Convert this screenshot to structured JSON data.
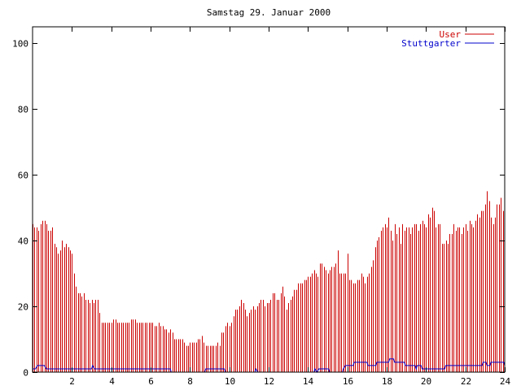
{
  "chart_data": {
    "type": "bar",
    "title": "Samstag 29. Januar 2000",
    "xlabel": "",
    "ylabel": "",
    "xlim": [
      0,
      24
    ],
    "ylim": [
      0,
      105
    ],
    "x_ticks": [
      2,
      4,
      6,
      8,
      10,
      12,
      14,
      16,
      18,
      20,
      22,
      24
    ],
    "y_ticks": [
      0,
      20,
      40,
      60,
      80,
      100
    ],
    "grid": false,
    "legend_position": "top-right",
    "colors": {
      "User": "#cc0000",
      "Stuttgarter": "#0000cc"
    },
    "user_per_hour": [
      [
        45,
        44,
        44,
        43,
        45,
        46,
        46,
        45,
        43,
        43,
        44,
        39
      ],
      [
        38,
        36,
        37,
        40,
        38,
        39,
        38,
        37,
        36,
        30,
        26,
        24
      ],
      [
        24,
        23,
        24,
        22,
        22,
        21,
        22,
        21,
        22,
        22,
        18,
        15
      ],
      [
        15,
        15,
        15,
        15,
        15,
        16,
        16,
        15,
        15,
        15,
        15,
        15
      ],
      [
        15,
        15,
        16,
        16,
        16,
        15,
        15,
        15,
        15,
        15,
        15,
        15
      ],
      [
        15,
        15,
        14,
        14,
        15,
        14,
        14,
        13,
        13,
        12,
        13,
        12
      ],
      [
        10,
        10,
        10,
        10,
        10,
        9,
        8,
        8,
        9,
        9,
        9,
        9
      ],
      [
        10,
        10,
        11,
        9,
        8,
        8,
        8,
        8,
        8,
        8,
        9,
        8
      ],
      [
        12,
        12,
        14,
        15,
        14,
        15,
        17,
        19,
        19,
        20,
        22,
        21
      ],
      [
        19,
        17,
        18,
        19,
        20,
        19,
        20,
        21,
        22,
        22,
        20,
        21
      ],
      [
        21,
        22,
        24,
        24,
        22,
        22,
        24,
        26,
        23,
        19,
        21,
        22
      ],
      [
        23,
        25,
        25,
        27,
        27,
        27,
        28,
        28,
        29,
        29,
        30,
        31
      ],
      [
        30,
        29,
        33,
        33,
        32,
        31,
        30,
        31,
        32,
        32,
        33,
        37
      ],
      [
        30,
        30,
        30,
        30,
        36,
        28,
        28,
        27,
        27,
        28,
        28,
        30
      ],
      [
        29,
        27,
        29,
        30,
        32,
        34,
        38,
        40,
        41,
        43,
        44,
        45
      ],
      [
        44,
        47,
        43,
        40,
        45,
        42,
        44,
        39,
        45,
        43,
        44,
        44
      ],
      [
        42,
        44,
        45,
        45,
        43,
        45,
        46,
        45,
        44,
        48,
        47,
        50
      ],
      [
        49,
        44,
        45,
        45,
        39,
        39,
        40,
        39,
        42,
        42,
        45,
        43
      ],
      [
        44,
        44,
        42,
        44,
        45,
        43,
        46,
        45,
        44,
        46,
        48,
        47
      ],
      [
        49,
        49,
        51,
        55,
        52,
        47,
        45,
        47,
        51,
        51,
        53,
        49
      ]
    ],
    "stuttgarter_points": [
      [
        0,
        1
      ],
      [
        0.15,
        1
      ],
      [
        0.25,
        2
      ],
      [
        0.6,
        2
      ],
      [
        0.7,
        1
      ],
      [
        3.0,
        1
      ],
      [
        3.05,
        2
      ],
      [
        3.15,
        1
      ],
      [
        7.0,
        1
      ],
      [
        7.05,
        0
      ],
      [
        8.75,
        0
      ],
      [
        8.8,
        1
      ],
      [
        9.75,
        1
      ],
      [
        9.8,
        0
      ],
      [
        11.3,
        0
      ],
      [
        11.35,
        1
      ],
      [
        11.45,
        0
      ],
      [
        14.3,
        0
      ],
      [
        14.35,
        1
      ],
      [
        14.45,
        0
      ],
      [
        14.55,
        1
      ],
      [
        15.05,
        1
      ],
      [
        15.1,
        0
      ],
      [
        15.75,
        0
      ],
      [
        15.8,
        1
      ],
      [
        15.9,
        2
      ],
      [
        16.3,
        2
      ],
      [
        16.35,
        3
      ],
      [
        17.0,
        3
      ],
      [
        17.05,
        2
      ],
      [
        17.45,
        2
      ],
      [
        17.5,
        3
      ],
      [
        18.1,
        3
      ],
      [
        18.15,
        4
      ],
      [
        18.35,
        4
      ],
      [
        18.4,
        3
      ],
      [
        18.9,
        3
      ],
      [
        18.95,
        2
      ],
      [
        19.45,
        2
      ],
      [
        19.5,
        1
      ],
      [
        19.55,
        2
      ],
      [
        19.75,
        2
      ],
      [
        19.8,
        1
      ],
      [
        20.95,
        1
      ],
      [
        21.0,
        2
      ],
      [
        22.85,
        2
      ],
      [
        22.9,
        3
      ],
      [
        23.05,
        3
      ],
      [
        23.1,
        2
      ],
      [
        23.25,
        2
      ],
      [
        23.3,
        3
      ],
      [
        23.95,
        3
      ],
      [
        24,
        2
      ]
    ],
    "legend": [
      {
        "name": "User",
        "color": "#cc0000"
      },
      {
        "name": "Stuttgarter",
        "color": "#0000cc"
      }
    ]
  }
}
